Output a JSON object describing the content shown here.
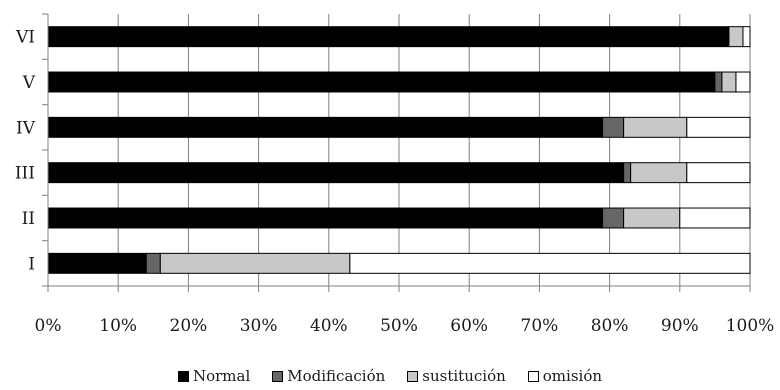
{
  "chart_data": {
    "type": "bar",
    "orientation": "horizontal",
    "stacked": "percent",
    "categories": [
      "VI",
      "V",
      "IV",
      "III",
      "II",
      "I"
    ],
    "series": [
      {
        "name": "Normal",
        "color": "#000000",
        "values": [
          97,
          95,
          79,
          82,
          79,
          14
        ]
      },
      {
        "name": "Modificación",
        "color": "#666666",
        "values": [
          0,
          1,
          3,
          1,
          3,
          2
        ]
      },
      {
        "name": "sustitución",
        "color": "#c8c8c8",
        "values": [
          2,
          2,
          9,
          8,
          8,
          27
        ]
      },
      {
        "name": "omisión",
        "color": "#ffffff",
        "values": [
          1,
          2,
          9,
          9,
          10,
          57
        ]
      }
    ],
    "xlim": [
      0,
      100
    ],
    "xticks": [
      "0%",
      "10%",
      "20%",
      "30%",
      "40%",
      "50%",
      "60%",
      "70%",
      "80%",
      "90%",
      "100%"
    ],
    "grid": true,
    "legend_position": "bottom"
  }
}
